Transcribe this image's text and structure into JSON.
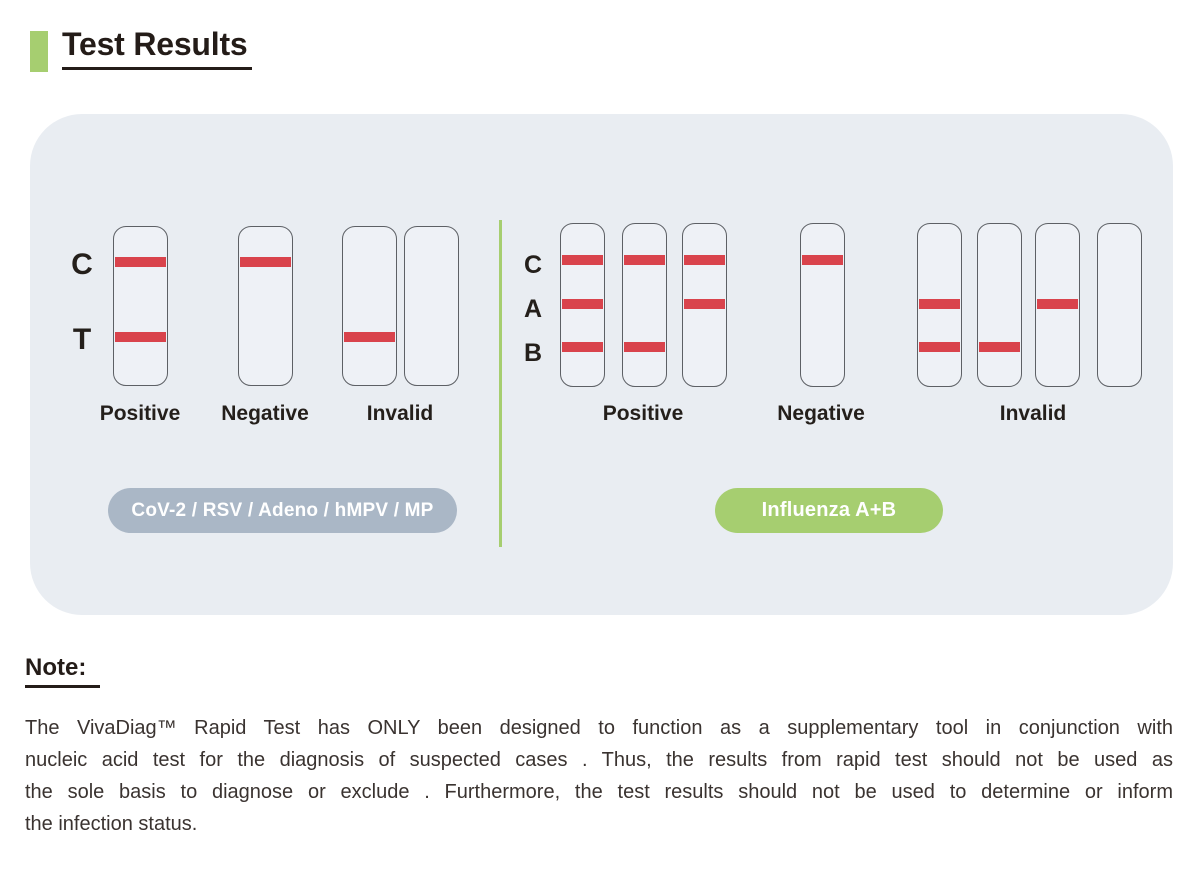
{
  "title": "Test Results",
  "panel": {
    "groups": [
      {
        "row_labels": [
          "C",
          "T"
        ],
        "strips": [
          {
            "lines": [
              "C",
              "T"
            ]
          },
          {
            "lines": [
              "C"
            ]
          },
          {
            "lines": [
              "T"
            ]
          },
          {
            "lines": []
          }
        ],
        "results": {
          "positive": "Positive",
          "negative": "Negative",
          "invalid": "Invalid"
        },
        "badge_label": "CoV-2 / RSV / Adeno / hMPV / MP",
        "badge_color": "#aab7c6"
      },
      {
        "row_labels": [
          "C",
          "A",
          "B"
        ],
        "strips": [
          {
            "lines": [
              "C",
              "A",
              "B"
            ]
          },
          {
            "lines": [
              "C",
              "B"
            ]
          },
          {
            "lines": [
              "C",
              "A"
            ]
          },
          {
            "lines": [
              "C"
            ]
          },
          {
            "lines": [
              "A",
              "B"
            ]
          },
          {
            "lines": [
              "B"
            ]
          },
          {
            "lines": [
              "A"
            ]
          },
          {
            "lines": []
          }
        ],
        "results": {
          "positive": "Positive",
          "negative": "Negative",
          "invalid": "Invalid"
        },
        "badge_label": "Influenza A+B",
        "badge_color": "#a6ce70"
      }
    ]
  },
  "colors": {
    "accent_green": "#a6ce70",
    "badge_gray": "#aab7c6",
    "test_line_red": "#d9434c",
    "panel_background": "#e9edf2"
  },
  "note": {
    "heading": "Note:",
    "lines": [
      "The VivaDiag™ Rapid Test has ONLY been designed to function as a supplementary tool in conjunction with",
      "nucleic acid test for the diagnosis of suspected cases . Thus, the results from rapid test should not be used as",
      "the sole basis to diagnose or exclude . Furthermore, the test results should not be used to determine or inform",
      "the infection status."
    ]
  }
}
